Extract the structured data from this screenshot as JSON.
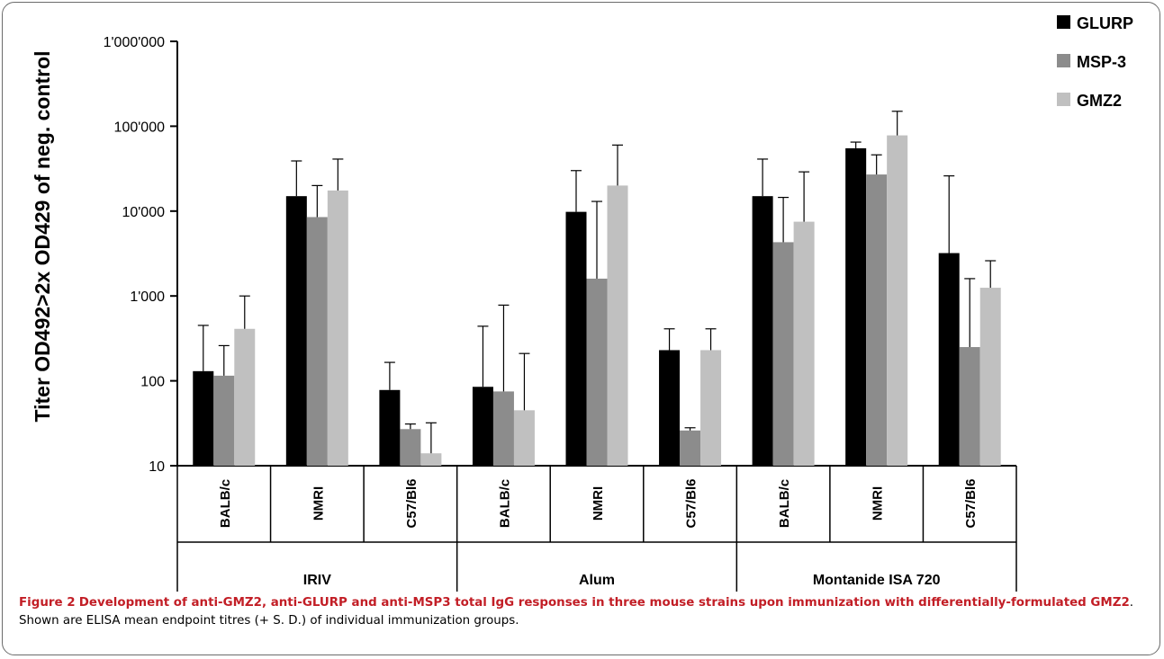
{
  "chart_data": {
    "type": "bar",
    "y_scale": "log",
    "ylim": [
      10,
      1000000
    ],
    "ylabel": "Titer OD492>2x OD429 of neg. control",
    "xlabel": "",
    "title": "",
    "yticks": [
      10,
      100,
      1000,
      10000,
      100000,
      1000000
    ],
    "ytick_labels": [
      "10",
      "100",
      "1'000",
      "10'000",
      "100'000",
      "1'000'000"
    ],
    "groups": [
      {
        "label": "IRIV",
        "categories": [
          "BALB/c",
          "NMRI",
          "C57/Bl6"
        ]
      },
      {
        "label": "Alum",
        "categories": [
          "BALB/c",
          "NMRI",
          "C57/Bl6"
        ]
      },
      {
        "label": "Montanide ISA 720",
        "categories": [
          "BALB/c",
          "NMRI",
          "C57/Bl6"
        ]
      }
    ],
    "categories": [
      "BALB/c",
      "NMRI",
      "C57/Bl6",
      "BALB/c",
      "NMRI",
      "C57/Bl6",
      "BALB/c",
      "NMRI",
      "C57/Bl6"
    ],
    "series": [
      {
        "name": "GLURP",
        "color": "#000000",
        "values": [
          130,
          15000,
          78,
          85,
          9800,
          230,
          15000,
          55000,
          3200
        ],
        "errors_upper": [
          450,
          39000,
          165,
          440,
          30000,
          410,
          41000,
          65000,
          26000
        ]
      },
      {
        "name": "MSP-3",
        "color": "#8c8c8c",
        "values": [
          115,
          8500,
          27,
          75,
          1600,
          26,
          4300,
          27000,
          250
        ],
        "errors_upper": [
          260,
          20000,
          31,
          780,
          13000,
          28,
          14500,
          46000,
          1600
        ]
      },
      {
        "name": "GMZ2",
        "color": "#c0c0c0",
        "values": [
          410,
          17500,
          14,
          45,
          20000,
          230,
          7500,
          78000,
          1250
        ],
        "errors_upper": [
          1000,
          41000,
          32,
          210,
          60000,
          410,
          29000,
          150000,
          2600
        ]
      }
    ],
    "grid": false,
    "legend_position": "top-right"
  },
  "caption": {
    "figure_label": "Figure 2",
    "title": "Development of anti-GMZ2, anti-GLURP and anti-MSP3 total IgG responses in three mouse strains upon immunization with differentially-formulated GMZ2",
    "text": ". Shown are ELISA mean endpoint titres (+ S. D.) of individual immunization groups."
  }
}
